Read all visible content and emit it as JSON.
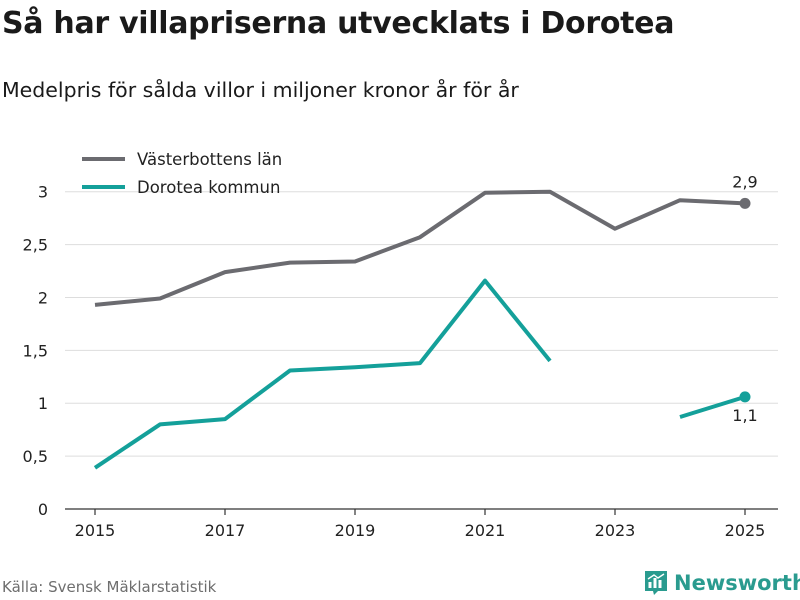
{
  "title": "Så har villapriserna utvecklats i Dorotea",
  "subtitle": "Medelpris för sålda villor i miljoner kronor år för år",
  "source": "Källa: Svensk Mäklarstatistik",
  "brand": "Newsworthy",
  "colors": {
    "lan": "#6b6b70",
    "kommun": "#14a09a",
    "grid": "#dddddd",
    "axis": "#333333",
    "brand": "#2a9b8f"
  },
  "chart_data": {
    "type": "line",
    "title": "Så har villapriserna utvecklats i Dorotea",
    "xlabel": "",
    "ylabel": "",
    "xlim": [
      2015,
      2025
    ],
    "ylim": [
      0,
      3.3
    ],
    "x_ticks": [
      2015,
      2017,
      2019,
      2021,
      2023,
      2025
    ],
    "x_tick_labels": [
      "2015",
      "2017",
      "2019",
      "2021",
      "2023",
      "2025"
    ],
    "y_ticks": [
      0,
      0.5,
      1,
      1.5,
      2,
      2.5,
      3
    ],
    "y_tick_labels": [
      "0",
      "0,5",
      "1",
      "1,5",
      "2",
      "2,5",
      "3"
    ],
    "legend_position": "top-left",
    "series": [
      {
        "name": "Västerbottens län",
        "color_key": "lan",
        "x": [
          2015,
          2016,
          2017,
          2018,
          2019,
          2020,
          2021,
          2022,
          2023,
          2024,
          2025
        ],
        "values": [
          1.93,
          1.99,
          2.24,
          2.33,
          2.34,
          2.57,
          2.99,
          3.0,
          2.65,
          2.92,
          2.89
        ],
        "end_label": "2,9"
      },
      {
        "name": "Dorotea kommun",
        "color_key": "kommun",
        "x": [
          2015,
          2016,
          2017,
          2018,
          2019,
          2020,
          2021,
          2022,
          2023,
          2024,
          2025
        ],
        "values": [
          0.39,
          0.8,
          0.85,
          1.31,
          1.34,
          1.38,
          2.16,
          1.4,
          null,
          0.87,
          1.06
        ],
        "end_label": "1,1"
      }
    ]
  }
}
